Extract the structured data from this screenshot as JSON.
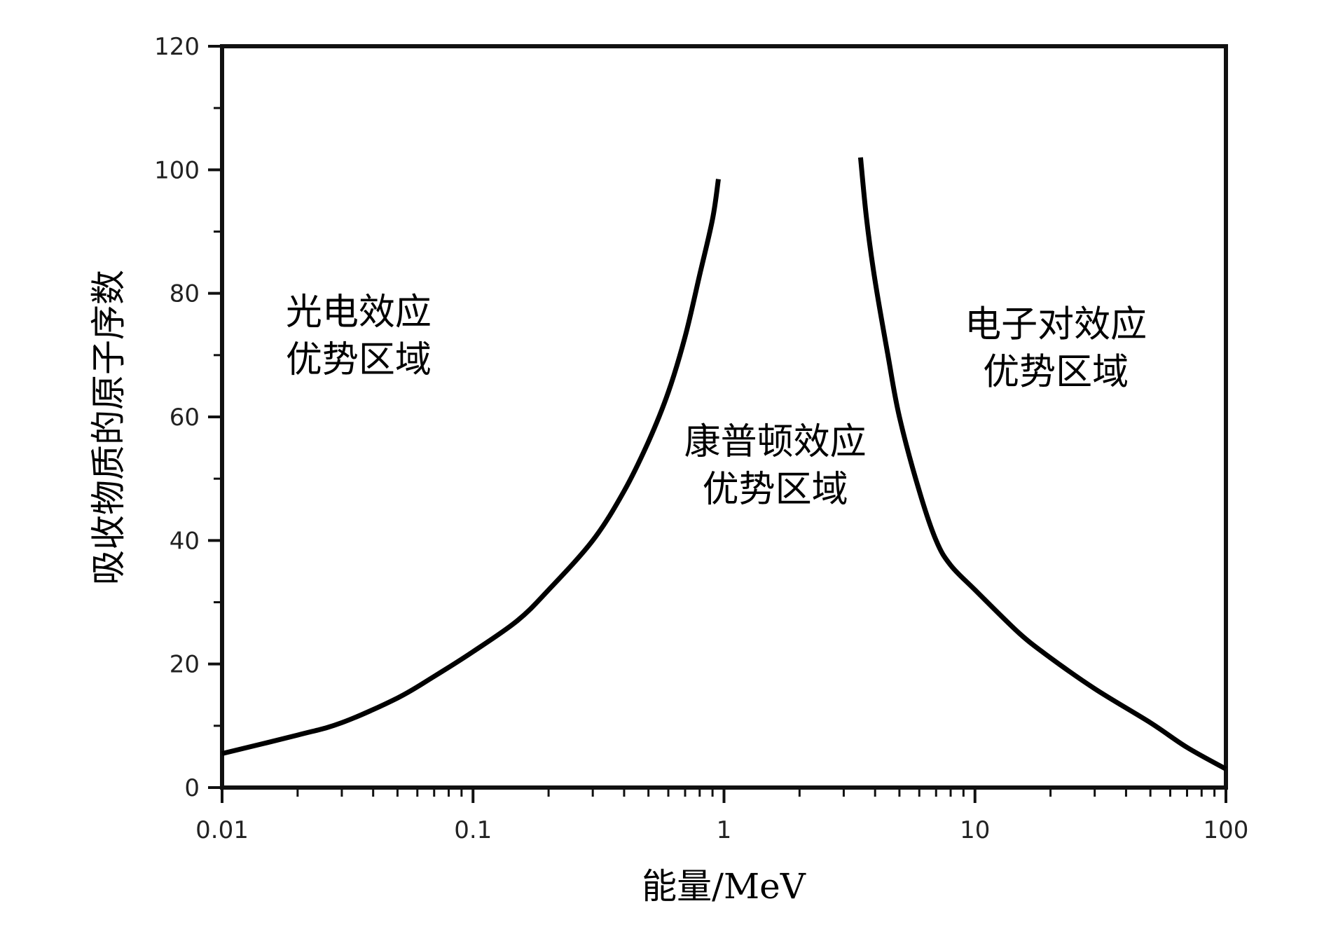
{
  "chart_data": {
    "type": "line",
    "title": "",
    "xlabel": "能量/MeV",
    "ylabel": "吸收物质的原子序数",
    "xscale": "log",
    "xlim": [
      0.01,
      100
    ],
    "ylim": [
      0,
      120
    ],
    "x_ticks": [
      {
        "value": 0.01,
        "label": "0.01"
      },
      {
        "value": 0.1,
        "label": "0.1"
      },
      {
        "value": 1,
        "label": "1"
      },
      {
        "value": 10,
        "label": "10"
      },
      {
        "value": 100,
        "label": "100"
      }
    ],
    "y_ticks": [
      {
        "value": 0,
        "label": "0"
      },
      {
        "value": 20,
        "label": "20"
      },
      {
        "value": 40,
        "label": "40"
      },
      {
        "value": 60,
        "label": "60"
      },
      {
        "value": 80,
        "label": "80"
      },
      {
        "value": 100,
        "label": "100"
      },
      {
        "value": 120,
        "label": "120"
      }
    ],
    "grid": false,
    "series": [
      {
        "points": [
          [
            0.01,
            5.5
          ],
          [
            0.02,
            8.5
          ],
          [
            0.03,
            10.5
          ],
          [
            0.05,
            14.5
          ],
          [
            0.07,
            18
          ],
          [
            0.1,
            22
          ],
          [
            0.15,
            27
          ],
          [
            0.2,
            32
          ],
          [
            0.3,
            40
          ],
          [
            0.4,
            48
          ],
          [
            0.5,
            56
          ],
          [
            0.6,
            64
          ],
          [
            0.7,
            73
          ],
          [
            0.8,
            83
          ],
          [
            0.9,
            92
          ],
          [
            0.95,
            98.5
          ]
        ]
      },
      {
        "points": [
          [
            3.5,
            102
          ],
          [
            3.7,
            92
          ],
          [
            4,
            82
          ],
          [
            4.5,
            70
          ],
          [
            5,
            60
          ],
          [
            6,
            48
          ],
          [
            7,
            40
          ],
          [
            8,
            36
          ],
          [
            10,
            32
          ],
          [
            15,
            25
          ],
          [
            20,
            21
          ],
          [
            30,
            16
          ],
          [
            50,
            10.5
          ],
          [
            70,
            6.5
          ],
          [
            100,
            3
          ]
        ]
      }
    ],
    "annotations": [
      {
        "lines": [
          "光电效应",
          "优势区域"
        ],
        "x": 0.035,
        "y": 75
      },
      {
        "lines": [
          "康普顿效应",
          "优势区域"
        ],
        "x": 1.6,
        "y": 54
      },
      {
        "lines": [
          "电子对效应",
          "优势区域"
        ],
        "x": 21,
        "y": 73
      }
    ]
  }
}
